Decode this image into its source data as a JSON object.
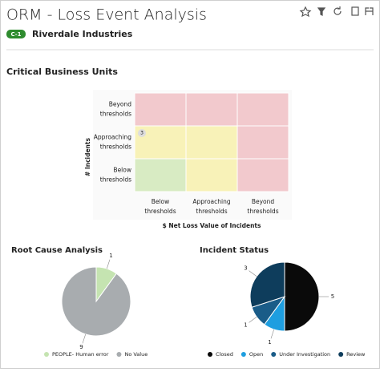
{
  "header": {
    "title": "ORM - Loss Event Analysis",
    "badge": "C-1",
    "subtitle": "Riverdale Industries"
  },
  "heatmap": {
    "title": "Critical Business Units",
    "y_label": "# Incidents",
    "x_label": "$ Net Loss Value of Incidents",
    "rows": [
      "Beyond thresholds",
      "Approaching thresholds",
      "Below thresholds"
    ],
    "columns": [
      "Below thresholds",
      "Approaching thresholds",
      "Beyond thresholds"
    ],
    "colors": [
      [
        "#f2c9cd",
        "#f2c9cd",
        "#f2c9cd"
      ],
      [
        "#f8f2b8",
        "#f8f2b8",
        "#f2c9cd"
      ],
      [
        "#d8ebc3",
        "#f8f2b8",
        "#f2c9cd"
      ]
    ],
    "markers": [
      {
        "row": 1,
        "column": 0,
        "value": 3
      }
    ]
  },
  "chart_data": [
    {
      "type": "pie",
      "title": "Root Cause Analysis",
      "categories": [
        "PEOPLE- Human error",
        "No Value"
      ],
      "values": [
        1,
        9
      ],
      "colors": [
        "#c5e4b1",
        "#a8acaf"
      ]
    },
    {
      "type": "pie",
      "title": "Incident Status",
      "categories": [
        "Closed",
        "Open",
        "Under Investigation",
        "Review"
      ],
      "values": [
        5,
        1,
        1,
        3
      ],
      "colors": [
        "#0a0a0a",
        "#1e9ee0",
        "#1a5c88",
        "#0e3d5c"
      ]
    }
  ]
}
